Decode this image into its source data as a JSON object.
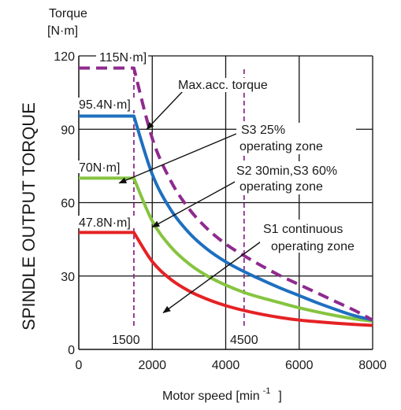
{
  "chart_data": {
    "type": "line",
    "ylabel_title": "SPINDLE OUTPUT TORQUE",
    "ylabel_unit_line1": "Torque",
    "ylabel_unit_line2": "[N·m]",
    "xlabel": "Motor speed [min",
    "xlabel_sup": "-1",
    "xlabel_end": "]",
    "xlim": [
      0,
      8000
    ],
    "ylim": [
      0,
      120
    ],
    "x_ticks": [
      0,
      2000,
      4000,
      6000,
      8000
    ],
    "x_tick_labels": [
      "0",
      "2000",
      "4000",
      "6000",
      "8000"
    ],
    "y_ticks": [
      0,
      30,
      60,
      90,
      120
    ],
    "y_tick_labels": [
      "0",
      "30",
      "60",
      "90",
      "120"
    ],
    "grid": true,
    "series": [
      {
        "name": "Max.acc. torque",
        "color": "#8e2a8e",
        "style": "dashed",
        "x": [
          0,
          1500,
          2000,
          2500,
          3000,
          3500,
          4000,
          4500,
          5000,
          5500,
          6000,
          6500,
          7000,
          7500,
          8000
        ],
        "values": [
          115,
          115,
          86.3,
          69,
          57.5,
          49.3,
          43.1,
          38.3,
          34,
          30,
          26.5,
          23,
          19.5,
          16,
          12
        ]
      },
      {
        "name": "S3 25% operating zone",
        "color": "#1e6fbf",
        "style": "solid",
        "x": [
          0,
          1500,
          2000,
          2500,
          3000,
          3500,
          4000,
          4500,
          5000,
          5500,
          6000,
          6500,
          7000,
          7500,
          8000
        ],
        "values": [
          95.4,
          95.4,
          71.6,
          57.2,
          47.7,
          40.9,
          35.8,
          31.8,
          28.3,
          25,
          22,
          19,
          16.3,
          13.8,
          12
        ]
      },
      {
        "name": "S2 30min,S3 60% operating zone",
        "color": "#86c440",
        "style": "solid",
        "x": [
          0,
          1500,
          2000,
          2500,
          3000,
          3500,
          4000,
          4500,
          5000,
          5500,
          6000,
          6500,
          7000,
          7500,
          8000
        ],
        "values": [
          70,
          70,
          52.5,
          42,
          35,
          30,
          26.3,
          23.3,
          21,
          19,
          17,
          15.3,
          13.8,
          12.5,
          11.5
        ]
      },
      {
        "name": "S1 continuous operating zone",
        "color": "#e52225",
        "style": "solid",
        "x": [
          0,
          1500,
          2000,
          2500,
          3000,
          3500,
          4000,
          4500,
          5000,
          5500,
          6000,
          6500,
          7000,
          7500,
          8000
        ],
        "values": [
          47.8,
          47.8,
          35.9,
          28.7,
          23.9,
          20.5,
          17.9,
          15.9,
          14.3,
          13,
          12,
          11.3,
          10.7,
          10.2,
          9.8
        ]
      }
    ],
    "annotations": {
      "max_label": "115N·m]",
      "s3_25_label": "95.4N·m]",
      "s2_label": "70N·m]",
      "s1_label": "47.8N·m]",
      "ann_max": "Max.acc. torque",
      "ann_s3_line1": "S3 25%",
      "ann_s3_line2": "operating zone",
      "ann_s2_line1": "S2 30min,S3 60%",
      "ann_s2_line2": "operating zone",
      "ann_s1_line1": "S1 continuous",
      "ann_s1_line2": "operating zone",
      "speed_1500": "1500",
      "speed_4500": "4500"
    },
    "marker_speeds": [
      1500,
      4500
    ],
    "marker_color": "#8e2a8e",
    "grid_color": "#111111"
  }
}
